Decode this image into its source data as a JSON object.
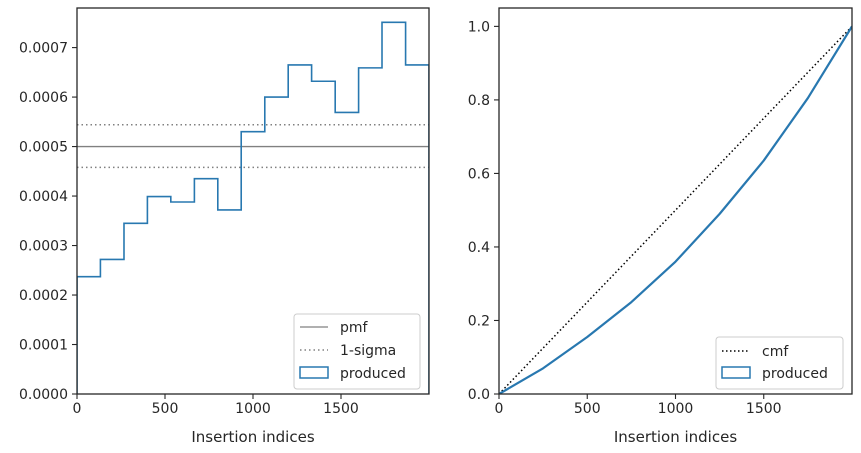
{
  "chart_data": [
    {
      "type": "histogram",
      "xlabel": "Insertion indices",
      "ylabel": "",
      "xlim": [
        0,
        2000
      ],
      "ylim": [
        0,
        0.00078
      ],
      "xticks": [
        0,
        500,
        1000,
        1500
      ],
      "yticks": [
        0,
        0.0001,
        0.0002,
        0.0003,
        0.0004,
        0.0005,
        0.0006,
        0.0007
      ],
      "ytick_labels": [
        "0.0000",
        "0.0001",
        "0.0002",
        "0.0003",
        "0.0004",
        "0.0005",
        "0.0006",
        "0.0007"
      ],
      "bin_edges": [
        0,
        133,
        267,
        400,
        533,
        667,
        800,
        933,
        1067,
        1200,
        1333,
        1467,
        1600,
        1733,
        1867,
        2000
      ],
      "values": [
        0.000237,
        0.000272,
        0.000345,
        0.000399,
        0.000388,
        0.000435,
        0.000372,
        0.00053,
        0.0006,
        0.000665,
        0.000632,
        0.000569,
        0.000659,
        0.000751,
        0.000665
      ],
      "pmf": 0.0005,
      "sigma_band": [
        0.000458,
        0.000544
      ],
      "legend": [
        "pmf",
        "1-sigma",
        "produced"
      ],
      "legend_position": "lower right",
      "colors": {
        "produced": "#2878b0",
        "pmf": "#808080",
        "sigma": "#808080"
      }
    },
    {
      "type": "line",
      "xlabel": "Insertion indices",
      "ylabel": "",
      "xlim": [
        0,
        2000
      ],
      "ylim": [
        0,
        1.05
      ],
      "xticks": [
        0,
        500,
        1000,
        1500
      ],
      "yticks": [
        0,
        0.2,
        0.4,
        0.6,
        0.8,
        1.0
      ],
      "ytick_labels": [
        "0.0",
        "0.2",
        "0.4",
        "0.6",
        "0.8",
        "1.0"
      ],
      "series": [
        {
          "name": "cmf",
          "x": [
            0,
            2000
          ],
          "y": [
            0,
            1.0
          ]
        },
        {
          "name": "produced",
          "x": [
            0,
            250,
            500,
            750,
            1000,
            1250,
            1500,
            1750,
            2000
          ],
          "y": [
            0,
            0.07,
            0.155,
            0.25,
            0.36,
            0.49,
            0.635,
            0.805,
            1.0
          ]
        }
      ],
      "legend": [
        "cmf",
        "produced"
      ],
      "legend_position": "lower right",
      "colors": {
        "produced": "#2878b0",
        "cmf": "#000000"
      }
    }
  ]
}
